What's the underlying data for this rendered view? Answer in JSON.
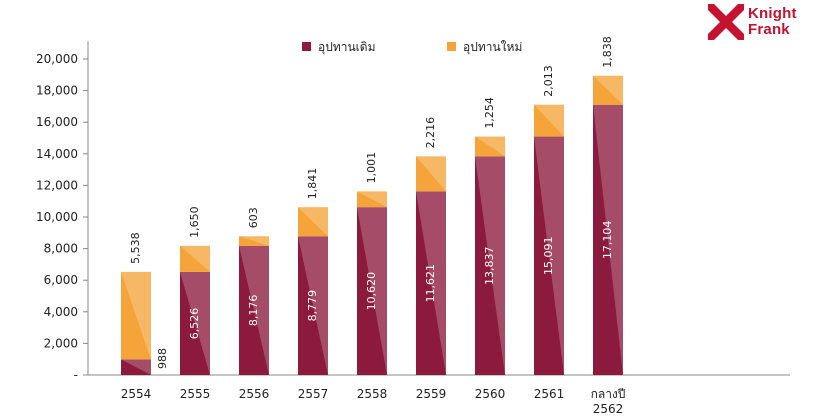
{
  "logo": {
    "line1": "Knight",
    "line2": "Frank",
    "icon": "knight-frank-diamond-logo",
    "color": "#c4122f"
  },
  "chart_data": {
    "type": "bar",
    "stacked": true,
    "categories": [
      "2554",
      "2555",
      "2556",
      "2557",
      "2558",
      "2559",
      "2560",
      "2561",
      "กลางปี 2562"
    ],
    "series": [
      {
        "name": "อุปทานเดิม",
        "color": "#8b1a3e",
        "values": [
          988,
          6526,
          8176,
          8779,
          10620,
          11621,
          13837,
          15091,
          17104
        ]
      },
      {
        "name": "อุปทานใหม่",
        "color": "#f5a43a",
        "values": [
          5538,
          1650,
          603,
          1841,
          1001,
          2216,
          1254,
          2013,
          1838
        ]
      }
    ],
    "data_labels": {
      "base": [
        "988",
        "6,526",
        "8,176",
        "8,779",
        "10,620",
        "11,621",
        "13,837",
        "15,091",
        "17,104"
      ],
      "new": [
        "5,538",
        "1,650",
        "603",
        "1,841",
        "1,001",
        "2,216",
        "1,254",
        "2,013",
        "1,838"
      ]
    },
    "ylim": [
      0,
      20000
    ],
    "y_ticks": [
      0,
      2000,
      4000,
      6000,
      8000,
      10000,
      12000,
      14000,
      16000,
      18000,
      20000
    ],
    "y_tick_labels": [
      "-",
      "2,000",
      "4,000",
      "6,000",
      "8,000",
      "10,000",
      "12,000",
      "14,000",
      "16,000",
      "18,000",
      "20,000"
    ],
    "legend_position": "top-center",
    "grid": false
  }
}
